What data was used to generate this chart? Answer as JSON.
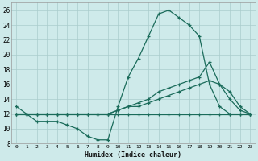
{
  "xlabel": "Humidex (Indice chaleur)",
  "bg_color": "#ceeaea",
  "grid_color": "#aacccc",
  "line_color": "#1a6b5a",
  "xlim": [
    -0.5,
    23.5
  ],
  "ylim": [
    8,
    27
  ],
  "xticks": [
    0,
    1,
    2,
    3,
    4,
    5,
    6,
    7,
    8,
    9,
    10,
    11,
    12,
    13,
    14,
    15,
    16,
    17,
    18,
    19,
    20,
    21,
    22,
    23
  ],
  "yticks": [
    8,
    10,
    12,
    14,
    16,
    18,
    20,
    22,
    24,
    26
  ],
  "series": [
    {
      "x": [
        0,
        1,
        2,
        3,
        4,
        5,
        6,
        7,
        8,
        9,
        10,
        11,
        12,
        13,
        14,
        15,
        16,
        17,
        18,
        19,
        20,
        21,
        22,
        23
      ],
      "y": [
        13,
        12,
        11,
        11,
        11,
        10.5,
        10,
        9,
        8.5,
        8.5,
        13,
        17,
        19.5,
        22.5,
        25.5,
        26,
        25,
        24,
        22.5,
        16,
        13,
        12,
        12,
        12
      ]
    },
    {
      "x": [
        0,
        1,
        2,
        3,
        4,
        5,
        6,
        7,
        8,
        9,
        10,
        11,
        12,
        13,
        14,
        15,
        16,
        17,
        18,
        19,
        20,
        21,
        22,
        23
      ],
      "y": [
        12,
        12,
        12,
        12,
        12,
        12,
        12,
        12,
        12,
        12,
        12,
        12,
        12,
        12,
        12,
        12,
        12,
        12,
        12,
        12,
        12,
        12,
        12,
        12
      ]
    },
    {
      "x": [
        0,
        1,
        2,
        3,
        4,
        5,
        6,
        7,
        8,
        9,
        10,
        11,
        12,
        13,
        14,
        15,
        16,
        17,
        18,
        19,
        20,
        21,
        22,
        23
      ],
      "y": [
        12,
        12,
        12,
        12,
        12,
        12,
        12,
        12,
        12,
        12,
        12.5,
        13,
        13.5,
        14,
        15,
        15.5,
        16,
        16.5,
        17,
        19,
        16,
        15,
        13,
        12
      ]
    },
    {
      "x": [
        0,
        1,
        2,
        3,
        4,
        5,
        6,
        7,
        8,
        9,
        10,
        11,
        12,
        13,
        14,
        15,
        16,
        17,
        18,
        19,
        20,
        21,
        22,
        23
      ],
      "y": [
        12,
        12,
        12,
        12,
        12,
        12,
        12,
        12,
        12,
        12,
        12.5,
        13,
        13,
        13.5,
        14,
        14.5,
        15,
        15.5,
        16,
        16.5,
        16,
        14,
        12.5,
        12
      ]
    }
  ]
}
